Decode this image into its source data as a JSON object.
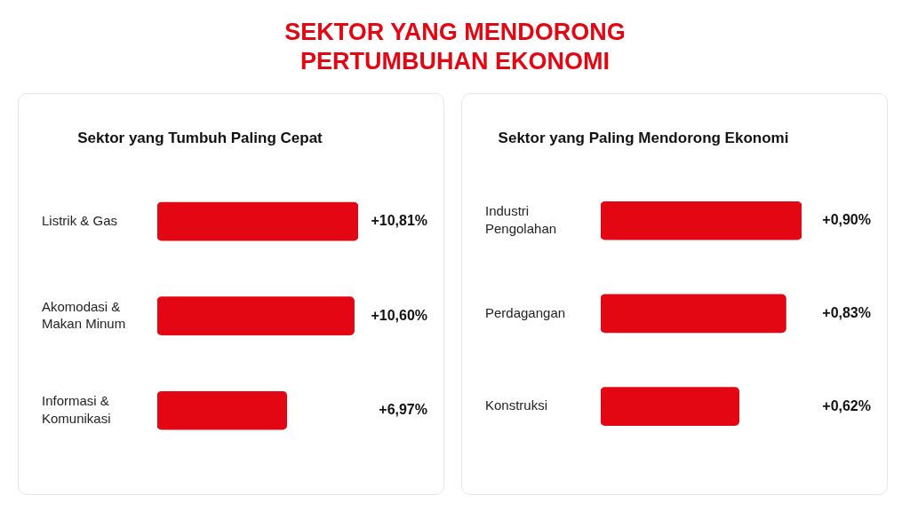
{
  "chart_data": [
    {
      "type": "other",
      "title": "SEKTOR YANG MENDORONG PERTUMBUHAN EKONOMI"
    },
    {
      "type": "bar",
      "orientation": "horizontal",
      "title": "Sektor yang Tumbuh Paling Cepat",
      "categories": [
        "Listrik & Gas",
        "Akomodasi & Makan Minum",
        "Informasi & Komunikasi"
      ],
      "values": [
        10.81,
        10.6,
        6.97
      ],
      "value_labels": [
        "+10,81%",
        "+10,60%",
        "+6,97%"
      ],
      "color": "#e30613",
      "legend": false,
      "tick_labels": "y"
    },
    {
      "type": "bar",
      "orientation": "horizontal",
      "title": "Sektor yang Paling Mendorong Ekonomi",
      "categories": [
        "Industri Pengolahan",
        "Perdagangan",
        "Konstruksi"
      ],
      "values": [
        0.9,
        0.83,
        0.62
      ],
      "value_labels": [
        "+0,90%",
        "+0,83%",
        "+0,62%"
      ],
      "color": "#e30613",
      "legend": false,
      "tick_labels": "y"
    }
  ]
}
